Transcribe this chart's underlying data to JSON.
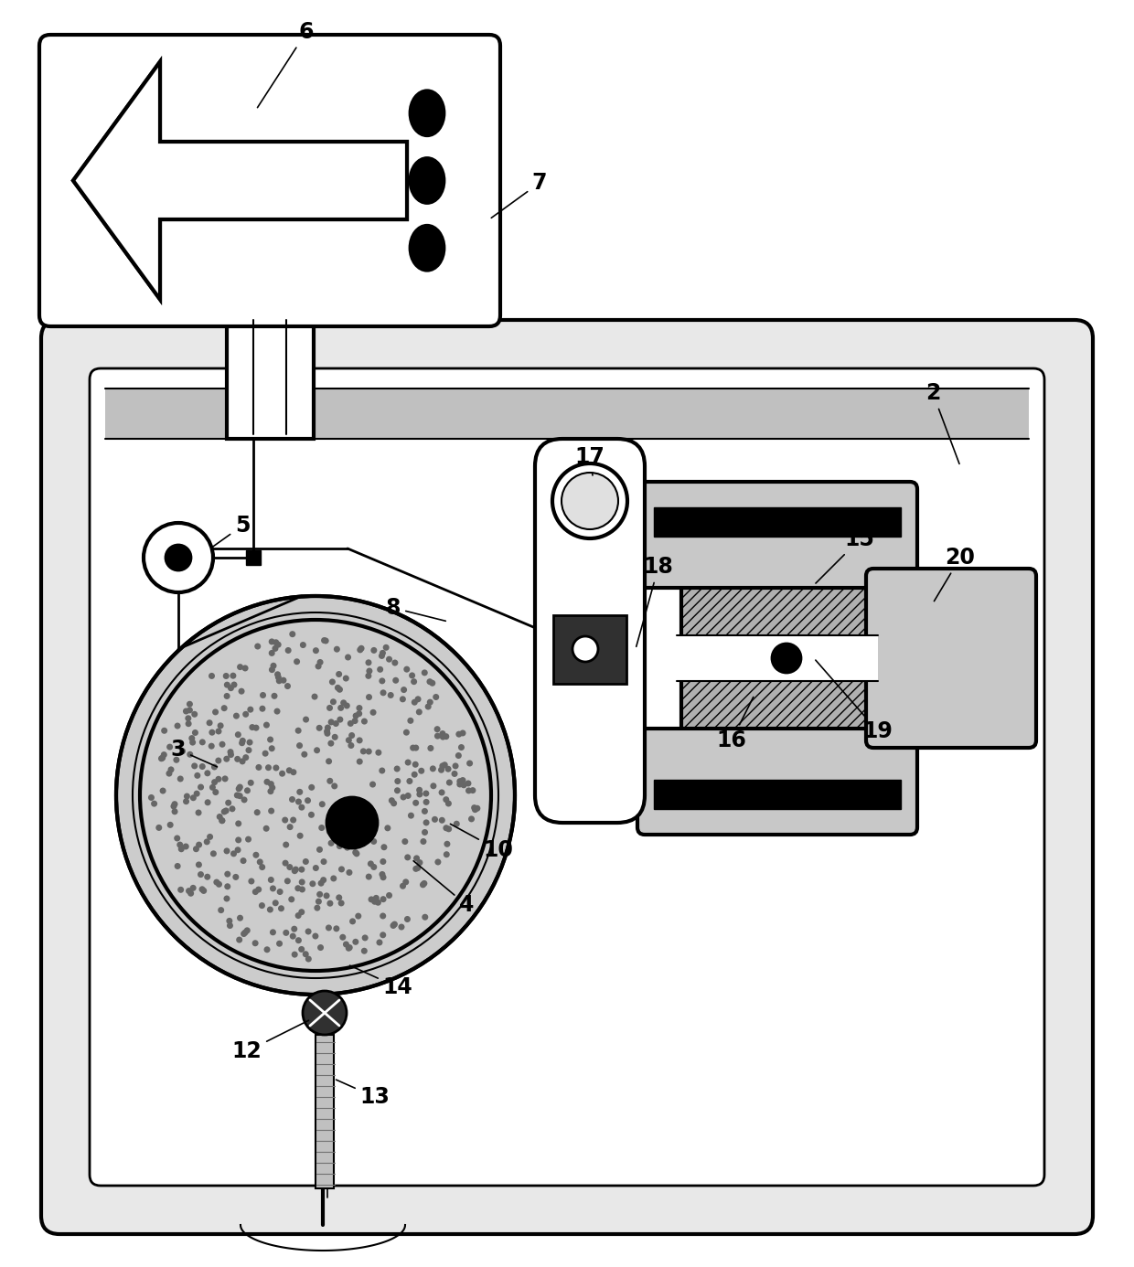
{
  "bg_color": "#ffffff",
  "lc": "#000000",
  "figsize": [
    12.4,
    13.86
  ],
  "dpi": 100,
  "gray_case": "#e8e8e8",
  "gray_bezel": "#c0c0c0",
  "gray_disc": "#cccccc",
  "gray_hatch": "#aaaaaa",
  "gray_coil": "#b0b0b0",
  "gray_core": "#c8c8c8",
  "white": "#ffffff",
  "black": "#000000",
  "dark_gray": "#303030"
}
